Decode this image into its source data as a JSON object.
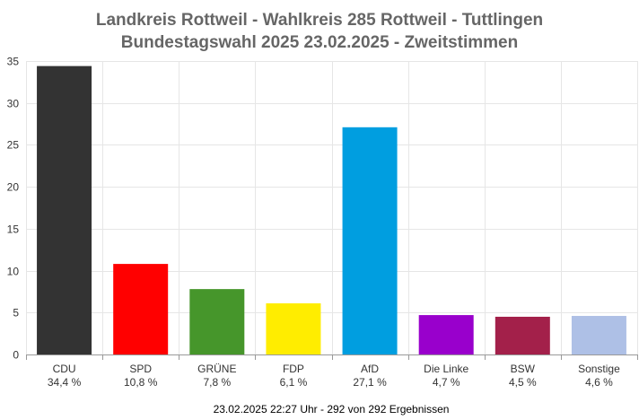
{
  "chart_data": {
    "type": "bar",
    "title_line1": "Landkreis Rottweil - Wahlkreis 285 Rottweil - Tuttlingen",
    "title_line2": "Bundestagswahl 2025 23.02.2025  - Zweitstimmen",
    "categories": [
      "CDU",
      "SPD",
      "GRÜNE",
      "FDP",
      "AfD",
      "Die Linke",
      "BSW",
      "Sonstige"
    ],
    "values": [
      34.4,
      10.8,
      7.8,
      6.1,
      27.1,
      4.7,
      4.5,
      4.6
    ],
    "value_labels": [
      "34,4 %",
      "10,8 %",
      "7,8 %",
      "6,1 %",
      "27,1 %",
      "4,7 %",
      "4,5 %",
      "4,6 %"
    ],
    "colors": [
      "#333333",
      "#ff0000",
      "#46962b",
      "#ffed00",
      "#009ee0",
      "#9900cc",
      "#a3204a",
      "#aec0e6"
    ],
    "ylim": [
      0,
      35
    ],
    "yticks": [
      0,
      5,
      10,
      15,
      20,
      25,
      30,
      35
    ],
    "grid": true,
    "footer": "23.02.2025 22:27 Uhr - 292 von 292 Ergebnissen"
  }
}
